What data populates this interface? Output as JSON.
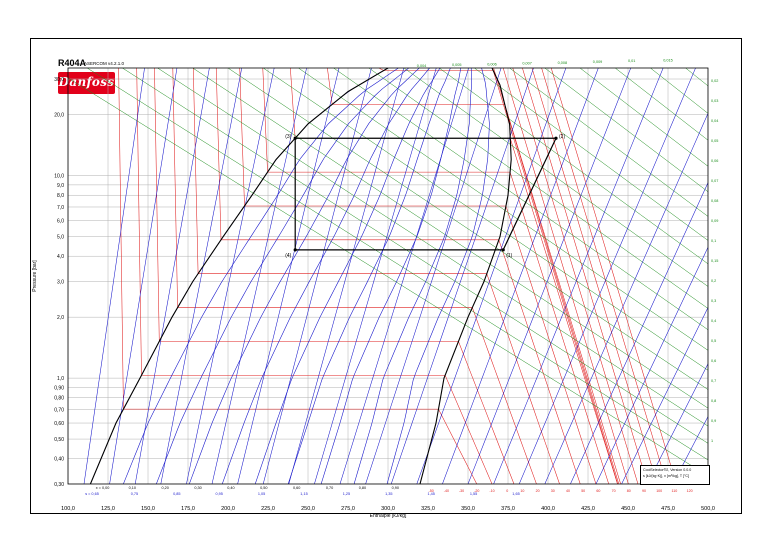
{
  "chart_data": {
    "type": "line",
    "refrigerant": "R404A",
    "software_version": "ASERCOM v4.2.1.0",
    "brand": "Danfoss",
    "xlabel": "Enthalpie [kJ/kg]",
    "ylabel": "Pressure [bar]",
    "xlim": [
      100,
      500
    ],
    "ylim": [
      0.3,
      34
    ],
    "y_scale": "log",
    "grid": true,
    "x_ticks": [
      "100,0",
      "125,0",
      "150,0",
      "175,0",
      "200,0",
      "225,0",
      "250,0",
      "275,0",
      "300,0",
      "325,0",
      "350,0",
      "375,0",
      "400,0",
      "425,0",
      "450,0",
      "475,0",
      "500,0"
    ],
    "x_tick_values": [
      100,
      125,
      150,
      175,
      200,
      225,
      250,
      275,
      300,
      325,
      350,
      375,
      400,
      425,
      450,
      475,
      500
    ],
    "y_ticks": [
      "0,30",
      "0,40",
      "0,50",
      "0,60",
      "0,70",
      "0,80",
      "0,90",
      "1,0",
      "2,0",
      "3,0",
      "4,0",
      "5,0",
      "6,0",
      "7,0",
      "8,0",
      "9,0",
      "10,0",
      "20,0",
      "30,0"
    ],
    "y_tick_values": [
      0.3,
      0.4,
      0.5,
      0.6,
      0.7,
      0.8,
      0.9,
      1,
      2,
      3,
      4,
      5,
      6,
      7,
      8,
      9,
      10,
      20,
      30
    ],
    "quality_labels": [
      "x = 0,00",
      "0,10",
      "0,20",
      "0,30",
      "0,40",
      "0,50",
      "0,60",
      "0,70",
      "0,80",
      "0,90"
    ],
    "quality_values": [
      0,
      0.1,
      0.2,
      0.3,
      0.4,
      0.5,
      0.6,
      0.7,
      0.8,
      0.9
    ],
    "entropy_labels": [
      "s = 0,65",
      "0,75",
      "0,85",
      "0,95",
      "1,05",
      "1,15",
      "1,25",
      "1,35",
      "1,45",
      "1,55",
      "1,65"
    ],
    "temperature_labels": [
      "-50",
      "-40",
      "-30",
      "-20",
      "-10",
      "0",
      "10",
      "20",
      "30",
      "40",
      "50",
      "60",
      "70",
      "80",
      "90",
      "100",
      "110",
      "120"
    ],
    "volume_labels": [
      "0,004",
      "0,005",
      "0,006",
      "0,007",
      "0,008",
      "0,009",
      "0,01",
      "0,015",
      "0,02",
      "0,03",
      "0,04",
      "0,05",
      "0,06",
      "0,07",
      "0,08",
      "0,09",
      "0,1",
      "0,15",
      "0,2",
      "0,3",
      "0,4",
      "0,5",
      "0,6",
      "0,7",
      "0,8",
      "0,9",
      "1"
    ],
    "saturation_liquid": [
      {
        "h": 114,
        "p": 0.3
      },
      {
        "h": 130,
        "p": 0.6
      },
      {
        "h": 145,
        "p": 1
      },
      {
        "h": 165,
        "p": 2
      },
      {
        "h": 178,
        "p": 3
      },
      {
        "h": 197,
        "p": 5
      },
      {
        "h": 215,
        "p": 8
      },
      {
        "h": 230,
        "p": 12
      },
      {
        "h": 250,
        "p": 18
      },
      {
        "h": 275,
        "p": 26
      },
      {
        "h": 300,
        "p": 34
      }
    ],
    "saturation_vapor": [
      {
        "h": 320,
        "p": 0.3
      },
      {
        "h": 330,
        "p": 0.6
      },
      {
        "h": 335,
        "p": 1
      },
      {
        "h": 350,
        "p": 2
      },
      {
        "h": 360,
        "p": 3
      },
      {
        "h": 370,
        "p": 5
      },
      {
        "h": 375,
        "p": 8
      },
      {
        "h": 377,
        "p": 12
      },
      {
        "h": 376,
        "p": 18
      },
      {
        "h": 370,
        "p": 28
      },
      {
        "h": 365,
        "p": 34
      }
    ],
    "cycle": {
      "points": [
        {
          "label": "(1)",
          "h": 372,
          "p": 4.3
        },
        {
          "label": "(2)",
          "h": 405,
          "p": 15.3
        },
        {
          "label": "(3)",
          "h": 242,
          "p": 15.3
        },
        {
          "label": "(4)",
          "h": 242,
          "p": 4.3
        }
      ],
      "color": "#000000"
    },
    "colors": {
      "isotherm": "#e02020",
      "isentrope": "#1a1acc",
      "isochore": "#1a8c1a",
      "quality": "#1a1acc",
      "saturation": "#000000"
    },
    "info_lines": [
      "CoolSelector®2, Version 0.0.0",
      "s [kJ/(kg·K)], v [m³/kg], T [°C]"
    ]
  }
}
